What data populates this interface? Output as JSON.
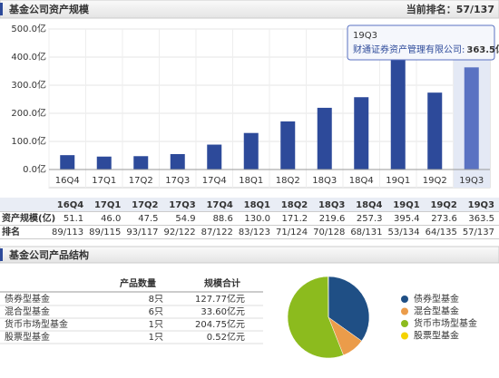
{
  "header": {
    "title": "基金公司资产规模",
    "rank": "当前排名：57/137"
  },
  "chart_data": [
    {
      "type": "bar",
      "categories": [
        "16Q4",
        "17Q1",
        "17Q2",
        "17Q3",
        "17Q4",
        "18Q1",
        "18Q2",
        "18Q3",
        "18Q4",
        "19Q1",
        "19Q2",
        "19Q3"
      ],
      "values": [
        51.1,
        46.0,
        47.5,
        54.9,
        88.6,
        130.0,
        171.2,
        219.6,
        257.3,
        395.4,
        273.6,
        363.5
      ],
      "color": "#2d4a9a",
      "highlight_color": "#5a72c2",
      "ylim": [
        0,
        500
      ],
      "yticks": [
        {
          "value": 0,
          "label": "0.0亿"
        },
        {
          "value": 100,
          "label": "100.0亿"
        },
        {
          "value": 200,
          "label": "200.0亿"
        },
        {
          "value": 300,
          "label": "300.0亿"
        },
        {
          "value": 400,
          "label": "400.0亿"
        },
        {
          "value": 500,
          "label": "500.0亿"
        }
      ],
      "grid": true,
      "tooltip": {
        "title": "19Q3",
        "text": "财通证券资产管理有限公司:",
        "value": "363.5亿"
      }
    },
    {
      "type": "pie",
      "categories": [
        "债券型基金",
        "混合型基金",
        "货币市场型基金",
        "股票型基金"
      ],
      "values": [
        127.77,
        33.6,
        204.75,
        0.52
      ],
      "colors": [
        "#1f4f85",
        "#eb9c4a",
        "#8cbb1e",
        "#f5d300"
      ]
    }
  ],
  "scale_table": {
    "header": [
      "16Q4",
      "17Q1",
      "17Q2",
      "17Q3",
      "17Q4",
      "18Q1",
      "18Q2",
      "18Q3",
      "18Q4",
      "19Q1",
      "19Q2",
      "19Q3"
    ],
    "rows": [
      {
        "label": "资产规模(亿)",
        "cells": [
          "51.1",
          "46.0",
          "47.5",
          "54.9",
          "88.6",
          "130.0",
          "171.2",
          "219.6",
          "257.3",
          "395.4",
          "273.6",
          "363.5"
        ]
      },
      {
        "label": "排名",
        "cells": [
          "89/113",
          "89/115",
          "93/117",
          "92/122",
          "87/122",
          "83/123",
          "71/124",
          "70/128",
          "68/131",
          "53/134",
          "64/135",
          "57/137"
        ]
      }
    ]
  },
  "structure": {
    "title": "基金公司产品结构",
    "columns": [
      "产品数量",
      "规模合计"
    ],
    "rows": [
      [
        "债券型基金",
        "8只",
        "127.77亿元"
      ],
      [
        "混合型基金",
        "6只",
        "33.60亿元"
      ],
      [
        "货币市场型基金",
        "1只",
        "204.75亿元"
      ],
      [
        "股票型基金",
        "1只",
        "0.52亿元"
      ]
    ]
  }
}
